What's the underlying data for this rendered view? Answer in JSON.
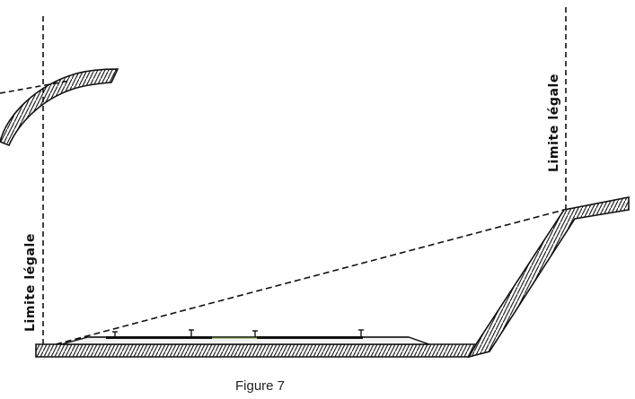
{
  "diagram": {
    "left_label": "Limite légale",
    "right_label": "Limite légale",
    "caption": "Figure 7"
  },
  "colors": {
    "line": "#111111",
    "hatch": "#222222",
    "track_fill": "#f3f3f3",
    "track_accent": "#7a9a3a",
    "background": "#ffffff"
  }
}
